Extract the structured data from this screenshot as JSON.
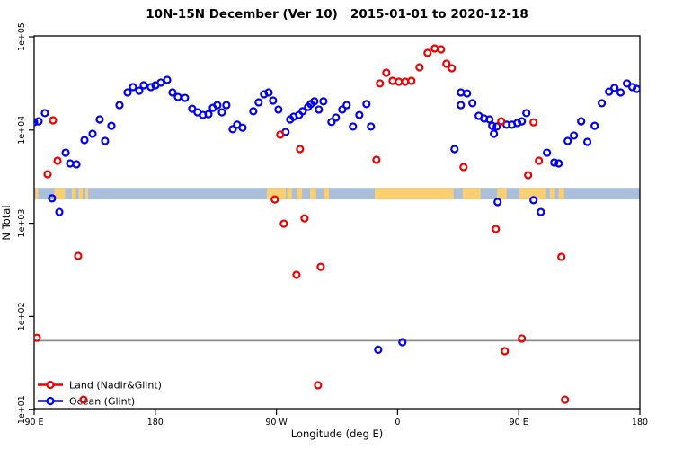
{
  "figure": {
    "title": "10N-15N December (Ver 10)   2015-01-01 to 2020-12-18"
  },
  "chart_data": {
    "type": "scatter",
    "title": "10N-15N December (Ver 10)   2015-01-01 to 2020-12-18",
    "xlabel": "Longitude (deg E)",
    "ylabel": "N Total",
    "x_axis": {
      "note": "longitude wraps eastward starting at 90E; t = degrees east of 90E",
      "span_deg": 450,
      "ticks": [
        {
          "t": 0,
          "label": "90 E"
        },
        {
          "t": 90,
          "label": "180"
        },
        {
          "t": 180,
          "label": "90 W"
        },
        {
          "t": 270,
          "label": "0"
        },
        {
          "t": 360,
          "label": "90 E"
        },
        {
          "t": 450,
          "label": "180"
        }
      ]
    },
    "y_axis": {
      "scale": "log",
      "min": 10,
      "max": 100000,
      "ticks": [
        {
          "value": 100000,
          "label": "1e+05"
        },
        {
          "value": 10000,
          "label": "1e+04"
        },
        {
          "value": 1000,
          "label": "1e+03"
        },
        {
          "value": 100,
          "label": "1e+02"
        },
        {
          "value": 10,
          "label": "1e+01"
        }
      ]
    },
    "series": [
      {
        "name": "Land (Nadir&Glint)",
        "color": "#ee0000",
        "points": [
          [
            2,
            59
          ],
          [
            10,
            3360
          ],
          [
            14,
            12700
          ],
          [
            17.4,
            4680
          ],
          [
            32.7,
            446
          ],
          [
            36.7,
            12.8
          ],
          [
            178.8,
            1800
          ],
          [
            182.8,
            8920
          ],
          [
            185.5,
            990
          ],
          [
            194.9,
            280
          ],
          [
            197.5,
            6250
          ],
          [
            200.9,
            1130
          ],
          [
            210.9,
            18.3
          ],
          [
            212.9,
            341
          ],
          [
            254.3,
            4790
          ],
          [
            256.9,
            31600
          ],
          [
            261.6,
            41200
          ],
          [
            266.3,
            33700
          ],
          [
            270.9,
            33000
          ],
          [
            275.6,
            33000
          ],
          [
            280.3,
            33700
          ],
          [
            286.3,
            47000
          ],
          [
            292.3,
            67100
          ],
          [
            297.6,
            75000
          ],
          [
            302.3,
            73300
          ],
          [
            306.3,
            51400
          ],
          [
            310.3,
            46000
          ],
          [
            319,
            4010
          ],
          [
            343,
            867
          ],
          [
            347,
            12400
          ],
          [
            349.7,
            42.5
          ],
          [
            362.3,
            58
          ],
          [
            367,
            3280
          ],
          [
            371,
            12100
          ],
          [
            375,
            4680
          ],
          [
            391.7,
            436
          ],
          [
            394.4,
            12.8
          ]
        ]
      },
      {
        "name": "Ocean (Glint)",
        "color": "#0000ee",
        "points": [
          [
            0,
            12150
          ],
          [
            3.3,
            12400
          ],
          [
            8,
            15200
          ],
          [
            13.3,
            1850
          ],
          [
            18.7,
            1320
          ],
          [
            23.4,
            5710
          ],
          [
            26.7,
            4380
          ],
          [
            31.4,
            4290
          ],
          [
            37.4,
            7800
          ],
          [
            43.4,
            9120
          ],
          [
            48.7,
            13000
          ],
          [
            52.7,
            7630
          ],
          [
            57.4,
            11100
          ],
          [
            63.4,
            18500
          ],
          [
            69.4,
            25300
          ],
          [
            73.4,
            28900
          ],
          [
            78.1,
            26400
          ],
          [
            81.4,
            30200
          ],
          [
            86.7,
            28900
          ],
          [
            90.1,
            30200
          ],
          [
            94.1,
            32300
          ],
          [
            98.8,
            34500
          ],
          [
            102.8,
            25300
          ],
          [
            106.8,
            22600
          ],
          [
            112.1,
            22100
          ],
          [
            117.4,
            16900
          ],
          [
            121.4,
            15500
          ],
          [
            125.4,
            14500
          ],
          [
            129.5,
            14800
          ],
          [
            132.8,
            17300
          ],
          [
            136.1,
            18500
          ],
          [
            139.5,
            15500
          ],
          [
            142.8,
            18500
          ],
          [
            147.5,
            10200
          ],
          [
            150.8,
            11400
          ],
          [
            154.8,
            10600
          ],
          [
            162.8,
            15900
          ],
          [
            166.8,
            19800
          ],
          [
            170.8,
            24200
          ],
          [
            174.2,
            25300
          ],
          [
            177.5,
            20700
          ],
          [
            181.5,
            16600
          ],
          [
            186.8,
            9530
          ],
          [
            190.2,
            13000
          ],
          [
            192.8,
            13900
          ],
          [
            196.8,
            14500
          ],
          [
            199.5,
            15900
          ],
          [
            203.5,
            17700
          ],
          [
            205.5,
            19000
          ],
          [
            208.2,
            20300
          ],
          [
            211.5,
            16600
          ],
          [
            214.9,
            20300
          ],
          [
            220.9,
            12200
          ],
          [
            224.2,
            13600
          ],
          [
            228.9,
            16600
          ],
          [
            232.2,
            18500
          ],
          [
            236.9,
            10900
          ],
          [
            241.6,
            14500
          ],
          [
            246.9,
            19000
          ],
          [
            250.2,
            10900
          ],
          [
            255.6,
            44
          ],
          [
            273.6,
            53
          ],
          [
            312.3,
            6250
          ],
          [
            317,
            25300
          ],
          [
            317,
            18500
          ],
          [
            321.6,
            24700
          ],
          [
            325.6,
            19400
          ],
          [
            330.3,
            14200
          ],
          [
            334.3,
            13300
          ],
          [
            338.3,
            13000
          ],
          [
            340.3,
            11100
          ],
          [
            341.6,
            9120
          ],
          [
            343.7,
            10900
          ],
          [
            344.3,
            1690
          ],
          [
            351,
            11400
          ],
          [
            355,
            11400
          ],
          [
            359,
            11900
          ],
          [
            362.3,
            12400
          ],
          [
            365.7,
            15200
          ],
          [
            371,
            1770
          ],
          [
            376.4,
            1320
          ],
          [
            381,
            5710
          ],
          [
            386.4,
            4480
          ],
          [
            389.7,
            4380
          ],
          [
            396.4,
            7630
          ],
          [
            401,
            8730
          ],
          [
            406.4,
            12400
          ],
          [
            411,
            7460
          ],
          [
            416.4,
            11100
          ],
          [
            421.7,
            19400
          ],
          [
            427.1,
            25800
          ],
          [
            431.1,
            28300
          ],
          [
            435.7,
            25300
          ],
          [
            440.4,
            31600
          ],
          [
            444.4,
            28900
          ],
          [
            447.7,
            27600
          ]
        ]
      }
    ],
    "annotations": {
      "hline": {
        "value": 55,
        "color": "#8c8c8c"
      },
      "land_ocean_strip": {
        "value_top": 2400,
        "value_bottom": 1800,
        "ocean_color": "#a9bfdb",
        "land_color": "#fccf72",
        "land_segments_deg": [
          [
            1,
            3
          ],
          [
            15,
            23
          ],
          [
            28,
            31
          ],
          [
            33,
            36
          ],
          [
            38,
            40
          ],
          [
            173,
            187
          ],
          [
            188,
            191.5
          ],
          [
            195,
            199
          ],
          [
            205,
            209.5
          ],
          [
            215,
            219
          ],
          [
            253,
            311.6
          ],
          [
            318.3,
            331.6
          ],
          [
            344,
            351
          ],
          [
            360.4,
            380.4
          ],
          [
            383,
            387
          ],
          [
            389.7,
            393.7
          ]
        ]
      }
    },
    "legend": {
      "position": "bottom-left",
      "items": [
        {
          "label": "Land (Nadir&Glint)",
          "color": "#ee0000"
        },
        {
          "label": "Ocean (Glint)",
          "color": "#0000ee"
        }
      ]
    },
    "grid": false
  }
}
